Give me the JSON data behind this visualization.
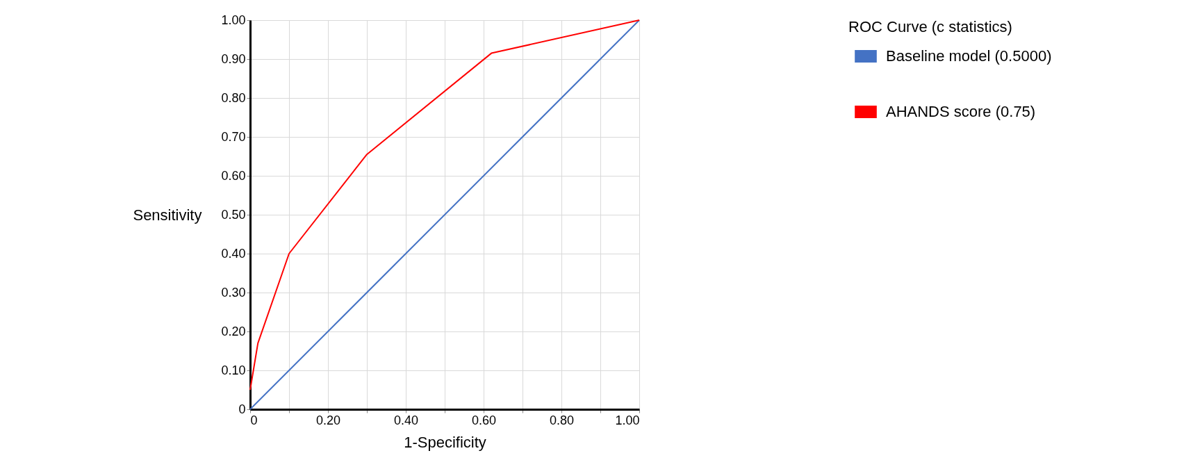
{
  "chart_data": {
    "type": "line",
    "xlabel": "1-Specificity",
    "ylabel": "Sensitivity",
    "legend_title": "ROC Curve (c statistics)",
    "legend": "right",
    "grid": true,
    "marker": "none",
    "line_style": "solid",
    "xlim": [
      0,
      1
    ],
    "ylim": [
      0,
      1
    ],
    "xticks": [
      0,
      {
        "value": 0.1,
        "label": null
      },
      {
        "value": 0.2,
        "label": "0.20"
      },
      {
        "value": 0.3,
        "label": null
      },
      {
        "value": 0.4,
        "label": "0.40"
      },
      {
        "value": 0.5,
        "label": null
      },
      {
        "value": 0.6,
        "label": "0.60"
      },
      {
        "value": 0.7,
        "label": null
      },
      {
        "value": 0.8,
        "label": "0.80"
      },
      {
        "value": 0.9,
        "label": null
      },
      {
        "value": 1,
        "label": "1.00"
      }
    ],
    "yticks": [
      0,
      {
        "value": 0.1,
        "label": "0.10"
      },
      {
        "value": 0.2,
        "label": "0.20"
      },
      {
        "value": 0.3,
        "label": "0.30"
      },
      {
        "value": 0.4,
        "label": "0.40"
      },
      {
        "value": 0.5,
        "label": "0.50"
      },
      {
        "value": 0.6,
        "label": "0.60"
      },
      {
        "value": 0.7,
        "label": "0.70"
      },
      {
        "value": 0.8,
        "label": "0.80"
      },
      {
        "value": 0.9,
        "label": "0.90"
      },
      {
        "value": 1,
        "label": "1.00"
      }
    ],
    "series": [
      {
        "name": "Baseline model (0.5000)",
        "color": "#4472c4",
        "x": [
          0,
          1
        ],
        "values": [
          0,
          1
        ]
      },
      {
        "name": "AHANDS score (0.75)",
        "color": "#ff0000",
        "x": [
          0,
          0.02,
          0.1,
          0.3,
          0.62,
          1
        ],
        "values": [
          0.05,
          0.17,
          0.4,
          0.655,
          0.915,
          1
        ]
      }
    ]
  }
}
